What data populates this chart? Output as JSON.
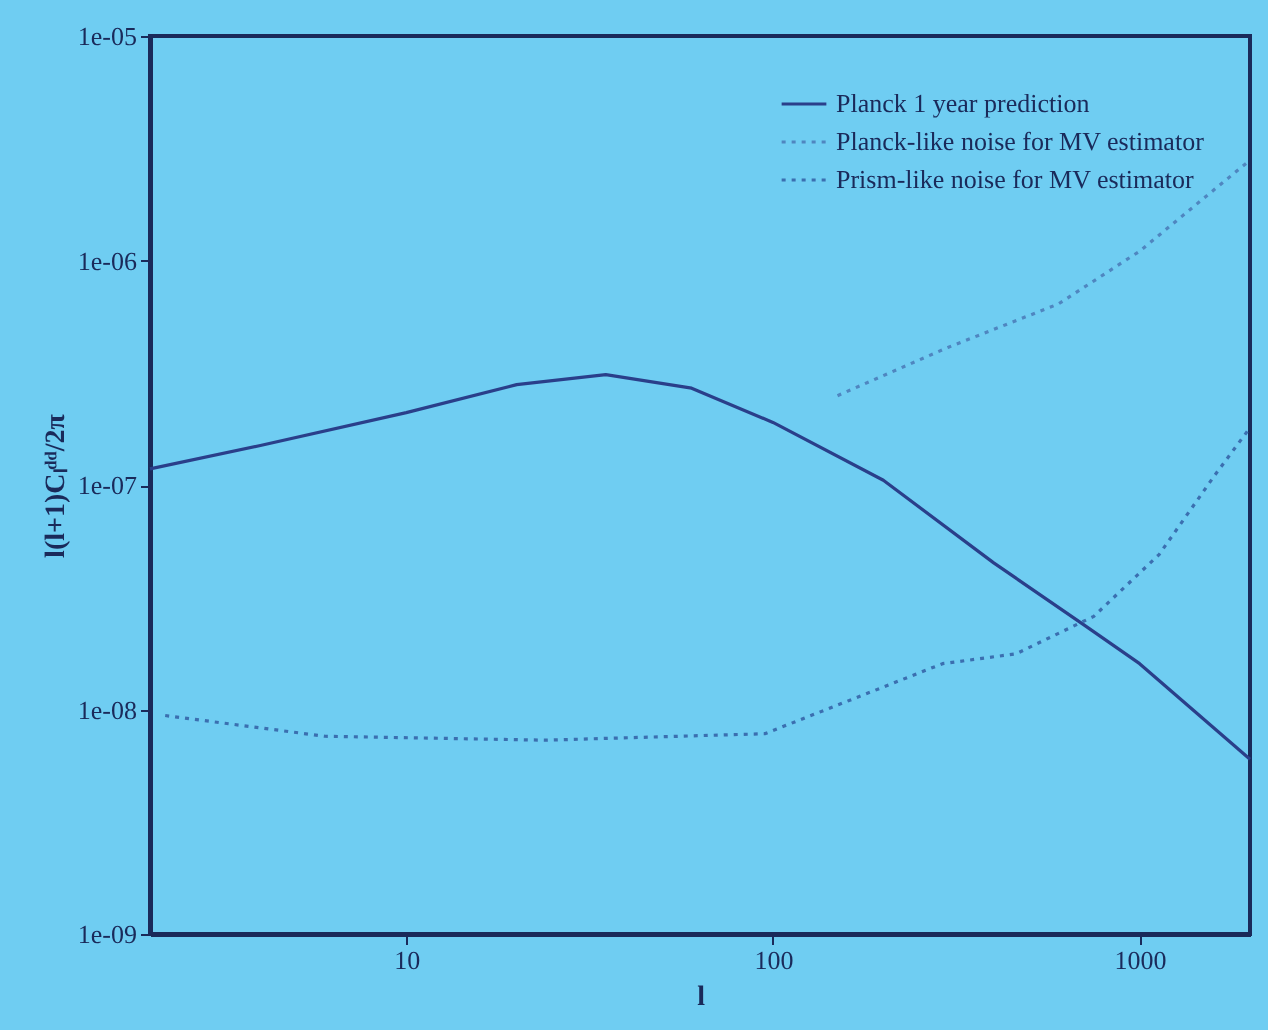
{
  "chart_data": {
    "type": "line",
    "xlabel": "l",
    "ylabel": "l(l+1)Cₗᵈᵈ/2π",
    "log": "xy",
    "grid": false,
    "legend": "top right",
    "marker": "none",
    "xlim": [
      2,
      2000
    ],
    "xticks": [
      10,
      100,
      1000
    ],
    "ylim": [
      1e-09,
      1e-05
    ],
    "yticks": [
      {
        "value": 1e-09,
        "label": "1e-09"
      },
      {
        "value": 1e-08,
        "label": "1e-08"
      },
      {
        "value": 1e-07,
        "label": "1e-07"
      },
      {
        "value": 1e-06,
        "label": "1e-06"
      },
      {
        "value": 1e-05,
        "label": "1e-05"
      }
    ],
    "series": [
      {
        "name": "Planck 1 year prediction",
        "color": "#2a3f8a",
        "line_style": "solid",
        "x": [
          2,
          4,
          10,
          20,
          35,
          60,
          100,
          200,
          400,
          700,
          1000,
          2000
        ],
        "values": [
          1.18e-07,
          1.5e-07,
          2.1e-07,
          2.8e-07,
          3.1e-07,
          2.7e-07,
          1.9e-07,
          1.05e-07,
          4.5e-08,
          2.4e-08,
          1.6e-08,
          6e-09
        ]
      },
      {
        "name": "Planck-like noise for MV estimator",
        "color": "#4f86c0",
        "line_style": "dotted",
        "x": [
          150,
          300,
          600,
          1000,
          1500,
          2000
        ],
        "values": [
          2.5e-07,
          4.1e-07,
          6.4e-07,
          1.1e-06,
          1.9e-06,
          2.8e-06
        ]
      },
      {
        "name": "Prism-like noise for MV estimator",
        "color": "#3b6fb0",
        "line_style": "dotted",
        "x": [
          2.2,
          6,
          24,
          95,
          290,
          460,
          750,
          1130,
          1600,
          2000
        ],
        "values": [
          9.4e-09,
          7.6e-09,
          7.3e-09,
          7.8e-09,
          1.6e-08,
          1.77e-08,
          2.6e-08,
          4.9e-08,
          1.1e-07,
          1.8e-07
        ]
      }
    ]
  }
}
